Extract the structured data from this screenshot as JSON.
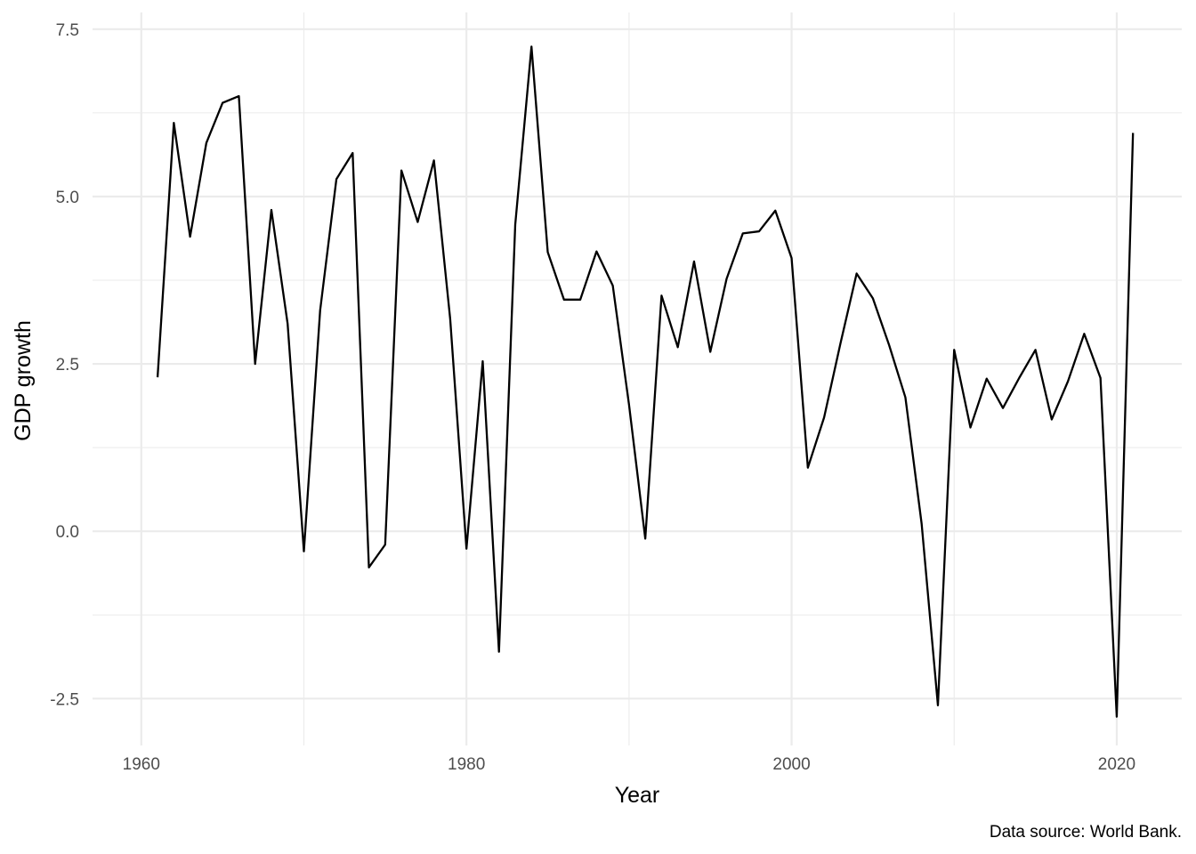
{
  "chart_data": {
    "type": "line",
    "title": "",
    "xlabel": "Year",
    "ylabel": "GDP growth",
    "caption": "Data source: World Bank.",
    "xlim": [
      1957,
      2024
    ],
    "ylim": [
      -3.2,
      7.75
    ],
    "x_ticks": [
      1960,
      1980,
      2000,
      2020
    ],
    "x_tick_labels": [
      "1960",
      "1980",
      "2000",
      "2020"
    ],
    "x_minor_ticks": [
      1970,
      1990,
      2010
    ],
    "y_ticks": [
      -2.5,
      0,
      2.5,
      5,
      7.5
    ],
    "y_tick_labels": [
      "-2.5",
      "0.0",
      "2.5",
      "5.0",
      "7.5"
    ],
    "y_minor_ticks": [
      -1.25,
      1.25,
      3.75,
      6.25
    ],
    "grid": true,
    "line_color": "#000000",
    "grid_color": "#ebebeb",
    "series": [
      {
        "x": [
          1961,
          1962,
          1963,
          1964,
          1965,
          1966,
          1967,
          1968,
          1969,
          1970,
          1971,
          1972,
          1973,
          1974,
          1975,
          1976,
          1977,
          1978,
          1979,
          1980,
          1981,
          1982,
          1983,
          1984,
          1985,
          1986,
          1987,
          1988,
          1989,
          1990,
          1991,
          1992,
          1993,
          1994,
          1995,
          1996,
          1997,
          1998,
          1999,
          2000,
          2001,
          2002,
          2003,
          2004,
          2005,
          2006,
          2007,
          2008,
          2009,
          2010,
          2011,
          2012,
          2013,
          2014,
          2015,
          2016,
          2017,
          2018,
          2019,
          2020,
          2021
        ],
        "values": [
          2.3,
          6.1,
          4.4,
          5.8,
          6.4,
          6.5,
          2.5,
          4.8,
          3.1,
          -0.3,
          3.3,
          5.26,
          5.65,
          -0.54,
          -0.2,
          5.39,
          4.62,
          5.54,
          3.17,
          -0.26,
          2.54,
          -1.8,
          4.58,
          7.24,
          4.17,
          3.46,
          3.46,
          4.18,
          3.67,
          1.89,
          -0.11,
          3.52,
          2.75,
          4.03,
          2.68,
          3.77,
          4.45,
          4.48,
          4.79,
          4.08,
          0.95,
          1.7,
          2.8,
          3.85,
          3.48,
          2.78,
          2.0,
          0.11,
          -2.6,
          2.71,
          1.55,
          2.28,
          1.84,
          2.29,
          2.71,
          1.67,
          2.24,
          2.95,
          2.29,
          -2.77,
          5.95
        ]
      }
    ]
  }
}
